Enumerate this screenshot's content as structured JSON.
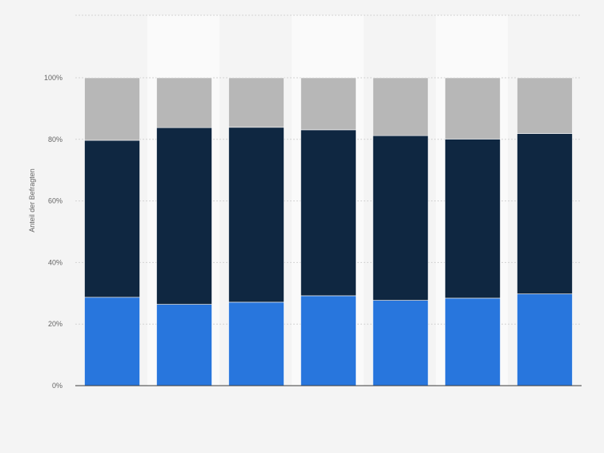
{
  "chart_data": {
    "type": "bar",
    "stacked": true,
    "categories": [
      "",
      "",
      "",
      "",
      "",
      "",
      ""
    ],
    "ylabel": "Anteil der Befragten",
    "xlabel": "",
    "title": "",
    "ylim": [
      0,
      100
    ],
    "yticks": [
      0,
      20,
      40,
      60,
      80,
      100
    ],
    "ytick_labels": [
      "0%",
      "20%",
      "40%",
      "60%",
      "80%",
      "100%"
    ],
    "grid": true,
    "series": [
      {
        "values": [
          28.7,
          26.4,
          27.1,
          29.2,
          27.7,
          28.4,
          29.8
        ],
        "color": "#2876dd"
      },
      {
        "values": [
          51.0,
          57.4,
          56.8,
          53.9,
          53.5,
          51.7,
          52.1
        ],
        "color": "#0f2741"
      },
      {
        "values": [
          20.3,
          16.2,
          16.1,
          16.9,
          18.8,
          19.9,
          18.1
        ],
        "color": "#b7b7b7"
      }
    ],
    "colors": {
      "background": "#f4f4f4",
      "band_light": "#fafafa",
      "grid": "#d3d3d3",
      "axis": "#3c3c3c",
      "tick_text": "#666666"
    }
  }
}
